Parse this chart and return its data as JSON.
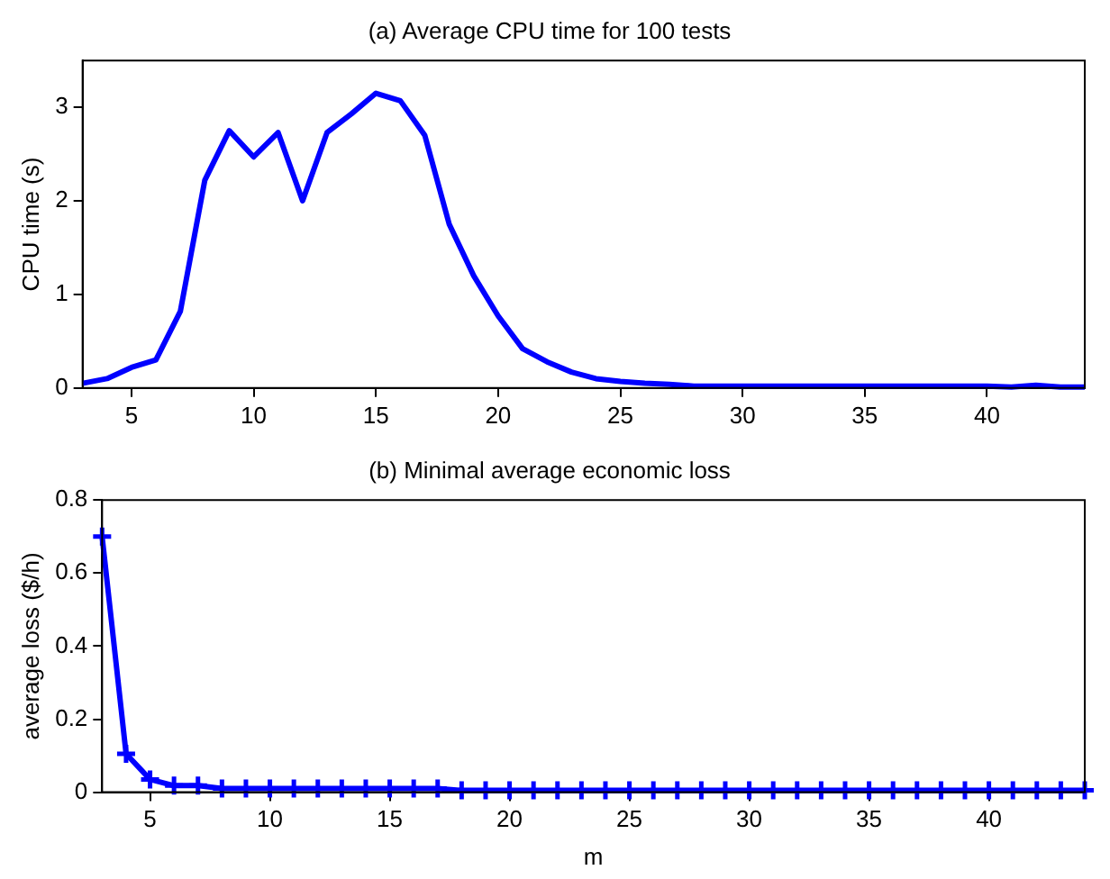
{
  "chart_data": [
    {
      "type": "line",
      "title": "(a) Average CPU time for 100 tests",
      "ylabel": "CPU time (s)",
      "x": [
        3,
        4,
        5,
        6,
        7,
        8,
        9,
        10,
        11,
        12,
        13,
        14,
        15,
        16,
        17,
        18,
        19,
        20,
        21,
        22,
        23,
        24,
        25,
        26,
        27,
        28,
        29,
        30,
        31,
        32,
        33,
        34,
        35,
        36,
        37,
        38,
        39,
        40,
        41,
        42,
        43,
        44
      ],
      "series": [
        {
          "color": "#0000ff",
          "values": [
            0.05,
            0.1,
            0.22,
            0.3,
            0.82,
            2.22,
            2.75,
            2.47,
            2.73,
            2.0,
            2.73,
            2.93,
            3.15,
            3.07,
            2.7,
            1.75,
            1.2,
            0.77,
            0.42,
            0.28,
            0.17,
            0.1,
            0.07,
            0.05,
            0.04,
            0.02,
            0.02,
            0.02,
            0.02,
            0.02,
            0.02,
            0.02,
            0.02,
            0.02,
            0.02,
            0.02,
            0.02,
            0.02,
            0.01,
            0.03,
            0.01,
            0.01
          ]
        }
      ],
      "xlim": [
        3,
        44
      ],
      "xticks": [
        5,
        10,
        15,
        20,
        25,
        30,
        35,
        40
      ],
      "ylim": [
        0,
        3.5
      ],
      "yticks": [
        0,
        1,
        2,
        3
      ],
      "grid": false,
      "legend": false,
      "marker": "none",
      "line_style": "solid"
    },
    {
      "type": "line",
      "title": "(b) Minimal average economic loss",
      "xlabel": "m",
      "ylabel": "average loss ($/h)",
      "x": [
        3,
        4,
        5,
        6,
        7,
        8,
        9,
        10,
        11,
        12,
        13,
        14,
        15,
        16,
        17,
        18,
        19,
        20,
        21,
        22,
        23,
        24,
        25,
        26,
        27,
        28,
        29,
        30,
        31,
        32,
        33,
        34,
        35,
        36,
        37,
        38,
        39,
        40,
        41,
        42,
        43,
        44
      ],
      "series": [
        {
          "color": "#0000ff",
          "values": [
            0.7,
            0.105,
            0.035,
            0.018,
            0.018,
            0.01,
            0.01,
            0.01,
            0.01,
            0.01,
            0.01,
            0.01,
            0.01,
            0.01,
            0.01,
            0.005,
            0.005,
            0.005,
            0.005,
            0.005,
            0.005,
            0.005,
            0.005,
            0.005,
            0.005,
            0.005,
            0.005,
            0.005,
            0.005,
            0.005,
            0.005,
            0.005,
            0.005,
            0.005,
            0.005,
            0.005,
            0.005,
            0.005,
            0.005,
            0.005,
            0.005,
            0.005
          ]
        }
      ],
      "xlim": [
        3,
        44
      ],
      "xticks": [
        5,
        10,
        15,
        20,
        25,
        30,
        35,
        40
      ],
      "ylim": [
        0,
        0.8
      ],
      "yticks": [
        0,
        0.2,
        0.4,
        0.6,
        0.8
      ],
      "grid": false,
      "legend": false,
      "marker": "cross",
      "line_style": "solid"
    }
  ]
}
